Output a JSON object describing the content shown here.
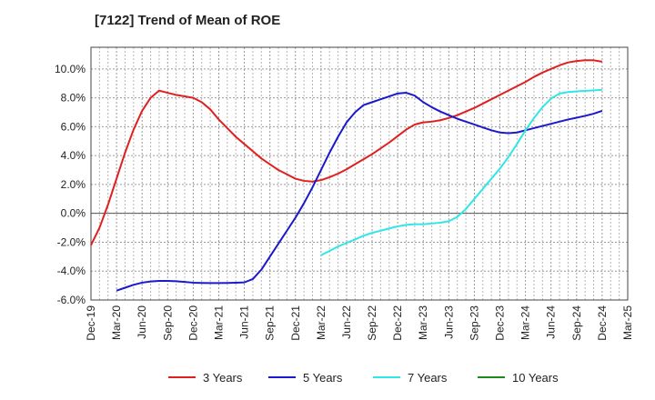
{
  "title": "[7122]  Trend of Mean of ROE",
  "chart_data": {
    "type": "line",
    "title": "[7122]  Trend of Mean of ROE",
    "xlabel": "",
    "ylabel": "",
    "ylim": [
      -6.0,
      11.5
    ],
    "yticks": [
      -6.0,
      -4.0,
      -2.0,
      0.0,
      2.0,
      4.0,
      6.0,
      8.0,
      10.0
    ],
    "ytick_labels": [
      "-6.0%",
      "-4.0%",
      "-2.0%",
      "0.0%",
      "2.0%",
      "4.0%",
      "6.0%",
      "8.0%",
      "10.0%"
    ],
    "xtick_labels": [
      "Dec-19",
      "Mar-20",
      "Jun-20",
      "Sep-20",
      "Dec-20",
      "Mar-21",
      "Jun-21",
      "Sep-21",
      "Dec-21",
      "Mar-22",
      "Jun-22",
      "Sep-22",
      "Dec-22",
      "Mar-23",
      "Jun-23",
      "Sep-23",
      "Dec-23",
      "Mar-24",
      "Jun-24",
      "Sep-24",
      "Dec-24",
      "Mar-25"
    ],
    "grid": true,
    "legend_position": "bottom",
    "series": [
      {
        "name": "3 Years",
        "color": "#e02020",
        "x": [
          "Dec-19",
          "Jan-20",
          "Feb-20",
          "Mar-20",
          "Apr-20",
          "May-20",
          "Jun-20",
          "Jul-20",
          "Aug-20",
          "Sep-20",
          "Oct-20",
          "Nov-20",
          "Dec-20",
          "Jan-21",
          "Feb-21",
          "Mar-21",
          "Apr-21",
          "May-21",
          "Jun-21",
          "Jul-21",
          "Aug-21",
          "Sep-21",
          "Oct-21",
          "Nov-21",
          "Dec-21",
          "Jan-22",
          "Feb-22",
          "Mar-22",
          "Apr-22",
          "May-22",
          "Jun-22",
          "Jul-22",
          "Aug-22",
          "Sep-22",
          "Oct-22",
          "Nov-22",
          "Dec-22",
          "Jan-23",
          "Feb-23",
          "Mar-23",
          "Apr-23",
          "May-23",
          "Jun-23",
          "Jul-23",
          "Aug-23",
          "Sep-23",
          "Oct-23",
          "Nov-23",
          "Dec-23",
          "Jan-24",
          "Feb-24",
          "Mar-24",
          "Apr-24",
          "May-24",
          "Jun-24",
          "Jul-24",
          "Aug-24",
          "Sep-24",
          "Oct-24",
          "Nov-24",
          "Dec-24"
        ],
        "values": [
          -2.2,
          -1.0,
          0.6,
          2.4,
          4.2,
          5.8,
          7.1,
          8.0,
          8.5,
          8.35,
          8.2,
          8.1,
          8.0,
          7.7,
          7.2,
          6.5,
          5.9,
          5.3,
          4.8,
          4.3,
          3.8,
          3.4,
          3.0,
          2.7,
          2.4,
          2.25,
          2.2,
          2.3,
          2.5,
          2.75,
          3.05,
          3.4,
          3.75,
          4.1,
          4.5,
          4.9,
          5.35,
          5.8,
          6.15,
          6.3,
          6.35,
          6.45,
          6.6,
          6.8,
          7.05,
          7.3,
          7.6,
          7.9,
          8.2,
          8.5,
          8.8,
          9.1,
          9.45,
          9.75,
          10.0,
          10.25,
          10.45,
          10.55,
          10.6,
          10.6,
          10.5
        ]
      },
      {
        "name": "5 Years",
        "color": "#1a1acc",
        "x": [
          "Mar-20",
          "Apr-20",
          "May-20",
          "Jun-20",
          "Jul-20",
          "Aug-20",
          "Sep-20",
          "Oct-20",
          "Nov-20",
          "Dec-20",
          "Jan-21",
          "Feb-21",
          "Mar-21",
          "Apr-21",
          "May-21",
          "Jun-21",
          "Jul-21",
          "Aug-21",
          "Sep-21",
          "Oct-21",
          "Nov-21",
          "Dec-21",
          "Jan-22",
          "Feb-22",
          "Mar-22",
          "Apr-22",
          "May-22",
          "Jun-22",
          "Jul-22",
          "Aug-22",
          "Sep-22",
          "Oct-22",
          "Nov-22",
          "Dec-22",
          "Jan-23",
          "Feb-23",
          "Mar-23",
          "Apr-23",
          "May-23",
          "Jun-23",
          "Jul-23",
          "Aug-23",
          "Sep-23",
          "Oct-23",
          "Nov-23",
          "Dec-23",
          "Jan-24",
          "Feb-24",
          "Mar-24",
          "Apr-24",
          "May-24",
          "Jun-24",
          "Jul-24",
          "Aug-24",
          "Sep-24",
          "Oct-24",
          "Nov-24",
          "Dec-24"
        ],
        "values": [
          -5.35,
          -5.15,
          -4.95,
          -4.8,
          -4.72,
          -4.68,
          -4.68,
          -4.7,
          -4.75,
          -4.8,
          -4.82,
          -4.83,
          -4.83,
          -4.82,
          -4.8,
          -4.78,
          -4.55,
          -3.9,
          -3.0,
          -2.1,
          -1.2,
          -0.3,
          0.7,
          1.8,
          3.0,
          4.2,
          5.3,
          6.3,
          7.0,
          7.5,
          7.7,
          7.9,
          8.1,
          8.3,
          8.35,
          8.15,
          7.7,
          7.35,
          7.05,
          6.8,
          6.55,
          6.35,
          6.15,
          5.95,
          5.75,
          5.6,
          5.55,
          5.6,
          5.75,
          5.9,
          6.05,
          6.2,
          6.35,
          6.5,
          6.62,
          6.75,
          6.9,
          7.1
        ]
      },
      {
        "name": "7 Years",
        "color": "#33e6e6",
        "x": [
          "Mar-22",
          "Apr-22",
          "May-22",
          "Jun-22",
          "Jul-22",
          "Aug-22",
          "Sep-22",
          "Oct-22",
          "Nov-22",
          "Dec-22",
          "Jan-23",
          "Feb-23",
          "Mar-23",
          "Apr-23",
          "May-23",
          "Jun-23",
          "Jul-23",
          "Aug-23",
          "Sep-23",
          "Oct-23",
          "Nov-23",
          "Dec-23",
          "Jan-24",
          "Feb-24",
          "Mar-24",
          "Apr-24",
          "May-24",
          "Jun-24",
          "Jul-24",
          "Aug-24",
          "Sep-24",
          "Oct-24",
          "Nov-24",
          "Dec-24"
        ],
        "values": [
          -2.9,
          -2.6,
          -2.3,
          -2.05,
          -1.8,
          -1.55,
          -1.35,
          -1.2,
          -1.05,
          -0.9,
          -0.8,
          -0.75,
          -0.75,
          -0.7,
          -0.65,
          -0.55,
          -0.25,
          0.3,
          1.0,
          1.7,
          2.4,
          3.1,
          3.9,
          4.8,
          5.75,
          6.6,
          7.35,
          7.95,
          8.3,
          8.4,
          8.45,
          8.48,
          8.52,
          8.55
        ]
      },
      {
        "name": "10 Years",
        "color": "#1e8a1e",
        "x": [],
        "values": []
      }
    ]
  }
}
